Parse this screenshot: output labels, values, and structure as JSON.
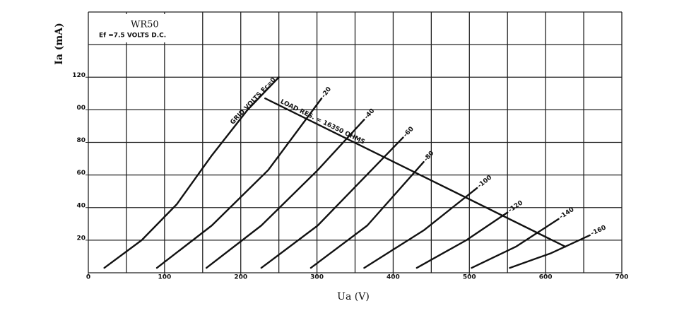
{
  "chart_data": {
    "type": "line",
    "title": "WR50",
    "subtitle": "Ef =7.5 VOLTS D.C.",
    "x_label": "Ua (V)",
    "y_label": "Ia (mA)",
    "xlim": [
      0,
      700
    ],
    "ylim": [
      0,
      160
    ],
    "xticks": [
      0,
      100,
      200,
      300,
      400,
      500,
      600,
      700
    ],
    "yticks": [
      20,
      40,
      60,
      80,
      {
        "value": 100,
        "label": "00"
      },
      120
    ],
    "xgrid": [
      0,
      50,
      100,
      150,
      200,
      250,
      300,
      350,
      400,
      450,
      500,
      550,
      600,
      650,
      700
    ],
    "ygrid": [
      0,
      20,
      40,
      60,
      80,
      100,
      120,
      140,
      160
    ],
    "grid": true,
    "series": [
      {
        "name": "GRID VOLTS Ec=0",
        "color": "#111111",
        "x": [
          21,
          70,
          116,
          162,
          209,
          250
        ],
        "values": [
          3,
          20,
          42,
          72,
          100,
          120
        ]
      },
      {
        "name": "-20",
        "color": "#111111",
        "x": [
          90,
          162,
          236,
          306
        ],
        "values": [
          3,
          29,
          63,
          107
        ]
      },
      {
        "name": "-40",
        "color": "#111111",
        "x": [
          155,
          227,
          301,
          362
        ],
        "values": [
          3,
          29,
          63,
          94
        ]
      },
      {
        "name": "-60",
        "color": "#111111",
        "x": [
          227,
          301,
          413
        ],
        "values": [
          3,
          29,
          83
        ]
      },
      {
        "name": "-80",
        "color": "#111111",
        "x": [
          292,
          366,
          440
        ],
        "values": [
          3,
          29,
          68
        ]
      },
      {
        "name": "-100",
        "color": "#111111",
        "x": [
          362,
          440,
          510
        ],
        "values": [
          3,
          26,
          52
        ]
      },
      {
        "name": "-120",
        "color": "#111111",
        "x": [
          431,
          496,
          550
        ],
        "values": [
          3,
          20,
          37
        ]
      },
      {
        "name": "-140",
        "color": "#111111",
        "x": [
          503,
          561,
          617
        ],
        "values": [
          3,
          16,
          33
        ]
      },
      {
        "name": "-160",
        "color": "#111111",
        "x": [
          553,
          607,
          658
        ],
        "values": [
          3,
          12,
          23
        ]
      },
      {
        "name": "LOAD RES. = 16350 OHMS",
        "color": "#111111",
        "x": [
          232,
          626
        ],
        "values": [
          107,
          16
        ]
      }
    ]
  }
}
